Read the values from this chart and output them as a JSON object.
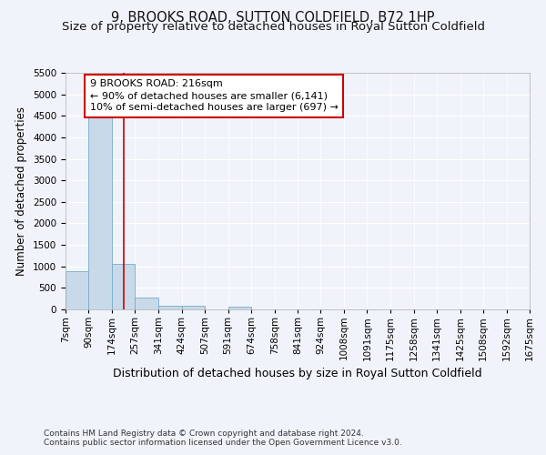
{
  "title": "9, BROOKS ROAD, SUTTON COLDFIELD, B72 1HP",
  "subtitle": "Size of property relative to detached houses in Royal Sutton Coldfield",
  "xlabel": "Distribution of detached houses by size in Royal Sutton Coldfield",
  "ylabel": "Number of detached properties",
  "footnote1": "Contains HM Land Registry data © Crown copyright and database right 2024.",
  "footnote2": "Contains public sector information licensed under the Open Government Licence v3.0.",
  "bin_edges": [
    7,
    90,
    174,
    257,
    341,
    424,
    507,
    591,
    674,
    758,
    841,
    924,
    1008,
    1091,
    1175,
    1258,
    1341,
    1425,
    1508,
    1592,
    1675
  ],
  "bar_heights": [
    880,
    4530,
    1060,
    275,
    90,
    80,
    0,
    55,
    0,
    0,
    0,
    0,
    0,
    0,
    0,
    0,
    0,
    0,
    0,
    0
  ],
  "bar_color": "#c8daea",
  "bar_edge_color": "#7aaac8",
  "vline_x": 216,
  "vline_color": "#cc0000",
  "annotation_line1": "9 BROOKS ROAD: 216sqm",
  "annotation_line2": "← 90% of detached houses are smaller (6,141)",
  "annotation_line3": "10% of semi-detached houses are larger (697) →",
  "annotation_box_color": "#cc0000",
  "ylim": [
    0,
    5500
  ],
  "yticks": [
    0,
    500,
    1000,
    1500,
    2000,
    2500,
    3000,
    3500,
    4000,
    4500,
    5000,
    5500
  ],
  "xtick_labels": [
    "7sqm",
    "90sqm",
    "174sqm",
    "257sqm",
    "341sqm",
    "424sqm",
    "507sqm",
    "591sqm",
    "674sqm",
    "758sqm",
    "841sqm",
    "924sqm",
    "1008sqm",
    "1091sqm",
    "1175sqm",
    "1258sqm",
    "1341sqm",
    "1425sqm",
    "1508sqm",
    "1592sqm",
    "1675sqm"
  ],
  "bg_color": "#f0f4fa",
  "plot_bg_color": "#f0f4fa",
  "grid_color": "#ffffff",
  "title_fontsize": 10.5,
  "subtitle_fontsize": 9.5,
  "xlabel_fontsize": 9,
  "ylabel_fontsize": 8.5,
  "tick_fontsize": 7.5,
  "footnote_fontsize": 6.5
}
